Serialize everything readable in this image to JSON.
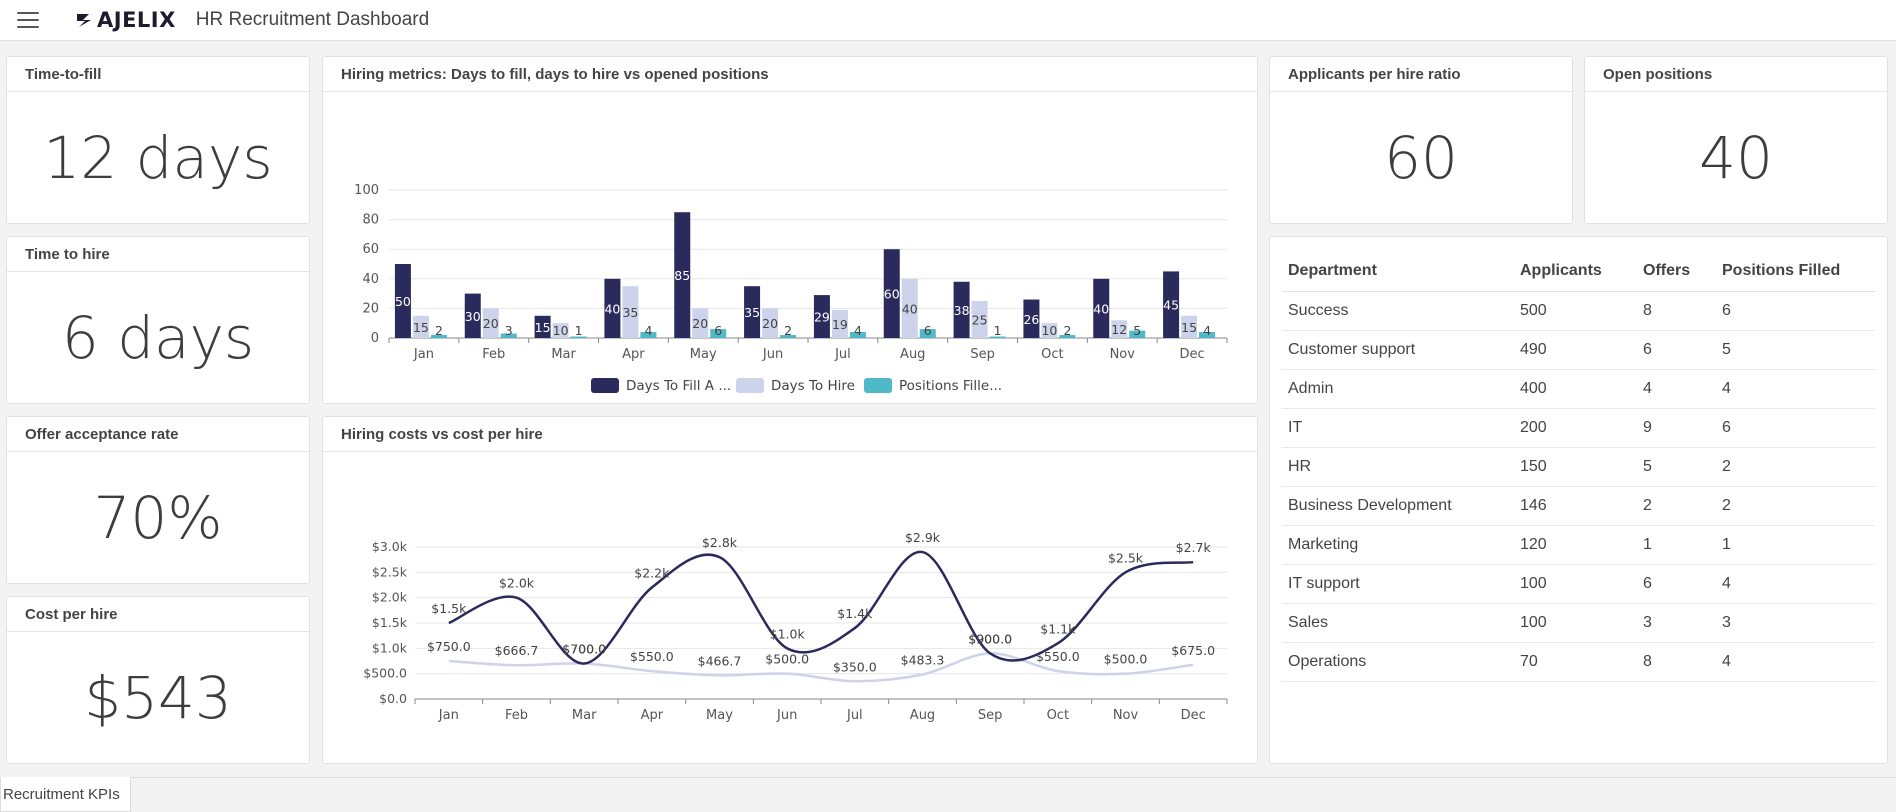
{
  "header": {
    "logo_text": "AJELIX",
    "title": "HR Recruitment Dashboard"
  },
  "kpis": {
    "time_to_fill": {
      "title": "Time-to-fill",
      "value": "12 days"
    },
    "time_to_hire": {
      "title": "Time to hire",
      "value": "6 days"
    },
    "offer_acceptance": {
      "title": "Offer acceptance rate",
      "value": "70%"
    },
    "cost_per_hire": {
      "title": "Cost per hire",
      "value": "$543"
    },
    "applicants_ratio": {
      "title": "Applicants per hire ratio",
      "value": "60"
    },
    "open_positions": {
      "title": "Open positions",
      "value": "40"
    }
  },
  "chart_data": [
    {
      "type": "bar",
      "title": "Hiring metrics: Days to fill, days to hire vs opened positions",
      "categories": [
        "Jan",
        "Feb",
        "Mar",
        "Apr",
        "May",
        "Jun",
        "Jul",
        "Aug",
        "Sep",
        "Oct",
        "Nov",
        "Dec"
      ],
      "ylim": [
        0,
        100
      ],
      "yticks": [
        "0",
        "20",
        "40",
        "60",
        "80",
        "100"
      ],
      "series": [
        {
          "name": "Days To Fill A ...",
          "color": "#2b2a5c",
          "values": [
            50,
            30,
            15,
            40,
            85,
            35,
            29,
            60,
            38,
            26,
            40,
            45
          ]
        },
        {
          "name": "Days To Hire",
          "color": "#cdd3ea",
          "values": [
            15,
            20,
            10,
            35,
            20,
            20,
            19,
            40,
            25,
            10,
            12,
            15
          ]
        },
        {
          "name": "Positions Fille...",
          "color": "#4fb9c9",
          "values": [
            2,
            3,
            1,
            4,
            6,
            2,
            4,
            6,
            1,
            2,
            5,
            4
          ]
        }
      ],
      "legend": "bottom"
    },
    {
      "type": "line",
      "title": "Hiring costs vs cost per hire",
      "categories": [
        "Jan",
        "Feb",
        "Mar",
        "Apr",
        "May",
        "Jun",
        "Jul",
        "Aug",
        "Sep",
        "Oct",
        "Nov",
        "Dec"
      ],
      "ylim": [
        0,
        3000
      ],
      "yticks": [
        "$0.0",
        "$500.0",
        "$1.0k",
        "$1.5k",
        "$2.0k",
        "$2.5k",
        "$3.0k"
      ],
      "series": [
        {
          "name": "Hiring costs",
          "color": "#2b2a5c",
          "values": [
            1500,
            2000,
            700,
            2200,
            2800,
            1000,
            1400,
            2900,
            900,
            1100,
            2500,
            2700
          ],
          "labels": [
            "$1.5k",
            "$2.0k",
            "$700.0",
            "$2.2k",
            "$2.8k",
            "$1.0k",
            "$1.4k",
            "$2.9k",
            "$900.0",
            "$1.1k",
            "$2.5k",
            "$2.7k"
          ]
        },
        {
          "name": "Cost per hire",
          "color": "#cdd3ea",
          "values": [
            750,
            666.7,
            700,
            550,
            466.7,
            500,
            350,
            483.3,
            900,
            550,
            500,
            675
          ],
          "labels": [
            "$750.0",
            "$666.7",
            "$700.0",
            "$550.0",
            "$466.7",
            "$500.0",
            "$350.0",
            "$483.3",
            "$900.0",
            "$550.0",
            "$500.0",
            "$675.0"
          ]
        }
      ]
    }
  ],
  "table": {
    "headers": [
      "Department",
      "Applicants",
      "Offers",
      "Positions Filled"
    ],
    "rows": [
      [
        "Success",
        "500",
        "8",
        "6"
      ],
      [
        "Customer support",
        "490",
        "6",
        "5"
      ],
      [
        "Admin",
        "400",
        "4",
        "4"
      ],
      [
        "IT",
        "200",
        "9",
        "6"
      ],
      [
        "HR",
        "150",
        "5",
        "2"
      ],
      [
        "Business Development",
        "146",
        "2",
        "2"
      ],
      [
        "Marketing",
        "120",
        "1",
        "1"
      ],
      [
        "IT support",
        "100",
        "6",
        "4"
      ],
      [
        "Sales",
        "100",
        "3",
        "3"
      ],
      [
        "Operations",
        "70",
        "8",
        "4"
      ]
    ]
  },
  "footer": {
    "sheet_tab": "Recruitment KPIs"
  }
}
